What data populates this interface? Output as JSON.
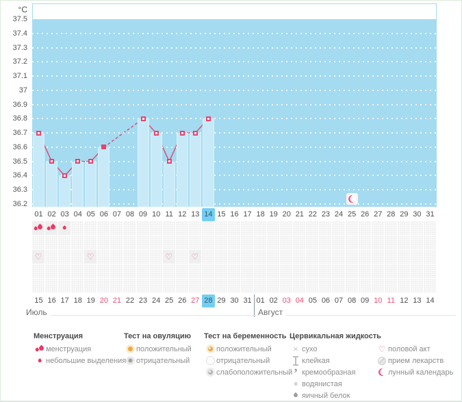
{
  "chart_data": {
    "type": "line",
    "unit": "°C",
    "ylabel": "°C",
    "ylim": [
      36.2,
      37.5
    ],
    "yticks": [
      "37.5",
      "37.4",
      "37.3",
      "37.2",
      "37.1",
      "37",
      "36.9",
      "36.8",
      "36.7",
      "36.6",
      "36.5",
      "36.4",
      "36.3",
      "36.2"
    ],
    "x_axis": "cycle_day",
    "grid": true,
    "series": [
      {
        "name": "basal temperature",
        "points": [
          {
            "day": 1,
            "value": 36.7
          },
          {
            "day": 2,
            "value": 36.5
          },
          {
            "day": 3,
            "value": 36.4
          },
          {
            "day": 4,
            "value": 36.5
          },
          {
            "day": 5,
            "value": 36.5
          },
          {
            "day": 6,
            "value": 36.6,
            "filled": true
          },
          {
            "day": 9,
            "value": 36.8
          },
          {
            "day": 10,
            "value": 36.7
          },
          {
            "day": 11,
            "value": 36.5
          },
          {
            "day": 12,
            "value": 36.7
          },
          {
            "day": 13,
            "value": 36.7
          },
          {
            "day": 14,
            "value": 36.8
          }
        ]
      }
    ],
    "dashed_gap_between_days": [
      6,
      9
    ],
    "moon_marker": {
      "day": 25,
      "icon": "moon"
    }
  },
  "cycle_days": {
    "days": [
      "01",
      "02",
      "03",
      "04",
      "05",
      "06",
      "07",
      "08",
      "09",
      "10",
      "11",
      "12",
      "13",
      "14",
      "15",
      "16",
      "17",
      "18",
      "19",
      "20",
      "21",
      "22",
      "23",
      "24",
      "25",
      "26",
      "27",
      "28",
      "29",
      "30",
      "31"
    ],
    "selected": "14"
  },
  "symptom_rows": [
    {
      "name": "menstruation",
      "cells": [
        {
          "day": 1,
          "icon": "drops"
        },
        {
          "day": 2,
          "icon": "drops"
        },
        {
          "day": 3,
          "icon": "drop-small"
        }
      ]
    },
    {
      "name": "row-2",
      "cells": []
    },
    {
      "name": "intercourse",
      "cells": [
        {
          "day": 1,
          "icon": "heart"
        },
        {
          "day": 5,
          "icon": "heart"
        },
        {
          "day": 11,
          "icon": "heart"
        },
        {
          "day": 13,
          "icon": "heart"
        }
      ]
    },
    {
      "name": "row-4",
      "cells": []
    },
    {
      "name": "row-5",
      "cells": []
    }
  ],
  "calendar": {
    "july": {
      "label": "Июль",
      "days": [
        "15",
        "16",
        "17",
        "18",
        "19",
        "20",
        "21",
        "22",
        "23",
        "24",
        "25",
        "26",
        "27",
        "28",
        "29",
        "30",
        "31"
      ],
      "weekend": [
        "20",
        "21",
        "27"
      ],
      "selected": "28"
    },
    "august": {
      "label": "Август",
      "days": [
        "01",
        "02",
        "03",
        "04",
        "05",
        "06",
        "07",
        "08",
        "09",
        "10",
        "11",
        "12",
        "13",
        "14"
      ],
      "weekend": [
        "03",
        "04",
        "10",
        "11"
      ],
      "selected": ""
    }
  },
  "legend": {
    "columns": [
      {
        "title": "Менструация",
        "items": [
          {
            "icon": "drops",
            "label": "менструация"
          },
          {
            "icon": "drop-small",
            "label": "небольшие выделения"
          }
        ]
      },
      {
        "title": "Тест на овуляцию",
        "items": [
          {
            "icon": "ovulation-positive",
            "label": "положительный"
          },
          {
            "icon": "ovulation-negative",
            "label": "отрицательный"
          }
        ]
      },
      {
        "title": "Тест на беременность",
        "items": [
          {
            "icon": "pregnancy-positive",
            "label": "положительный"
          },
          {
            "icon": "pregnancy-negative",
            "label": "отрицательный"
          },
          {
            "icon": "pregnancy-weak-positive",
            "label": "слабоположительный"
          }
        ]
      },
      {
        "title": "Цервикальная жидкость",
        "items": [
          {
            "icon": "dry",
            "label": "сухо"
          },
          {
            "icon": "sticky",
            "label": "клейкая"
          },
          {
            "icon": "creamy",
            "label": "кремообразная"
          },
          {
            "icon": "watery",
            "label": "водянистая"
          },
          {
            "icon": "egg-white",
            "label": "яичный белок"
          }
        ]
      },
      {
        "title": "",
        "items": [
          {
            "icon": "heart",
            "label": "половой акт"
          },
          {
            "icon": "pill",
            "label": "прием лекарств"
          },
          {
            "icon": "moon",
            "label": "лунный календарь"
          }
        ]
      }
    ]
  },
  "colors": {
    "chart_bg": "#a4dbf0",
    "bar": "#c8eaf8",
    "line": "#e8436d",
    "selected_day_bg": "#74cef3",
    "weekend_text": "#e94f75",
    "menstruation_pink": "#ea3a66"
  }
}
